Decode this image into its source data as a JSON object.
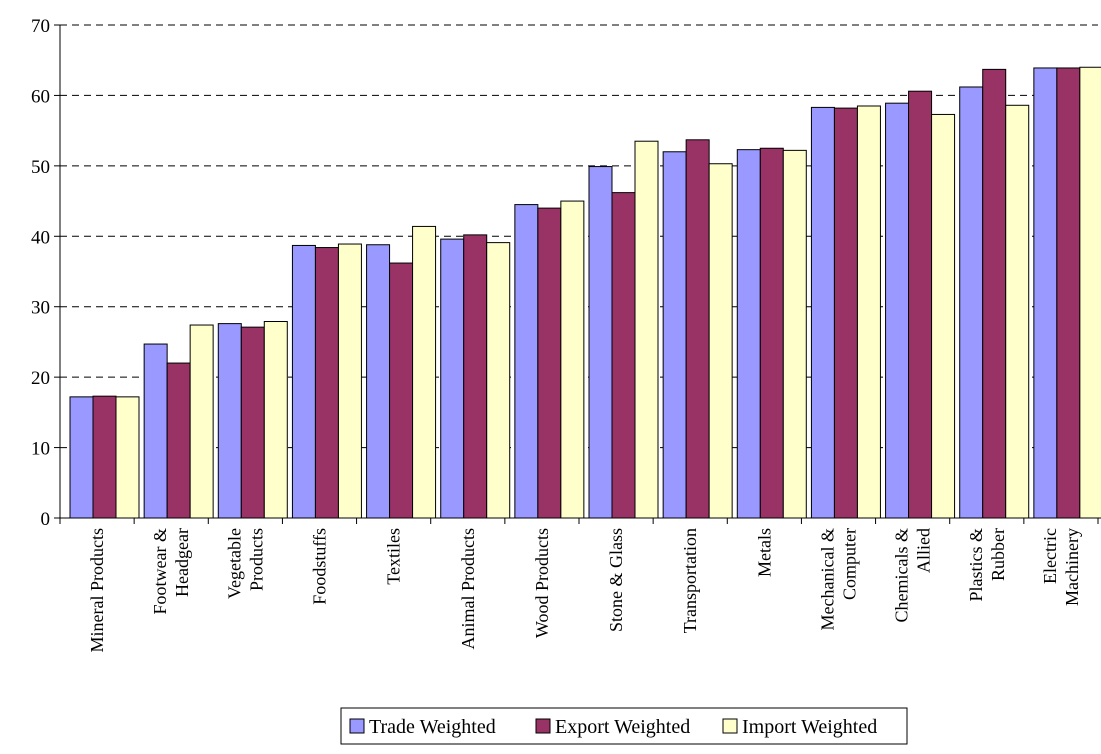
{
  "chart_data": {
    "type": "bar",
    "title": "",
    "xlabel": "",
    "ylabel": "",
    "ylim": [
      0,
      70
    ],
    "yticks": [
      0,
      10,
      20,
      30,
      40,
      50,
      60,
      70
    ],
    "grid": "horizontal dashed",
    "legend_position": "bottom-center",
    "categories": [
      [
        "Mineral Products"
      ],
      [
        "Footwear &",
        "Headgear"
      ],
      [
        "Vegetable",
        "Products"
      ],
      [
        "Foodstuffs"
      ],
      [
        "Textiles"
      ],
      [
        "Animal Products"
      ],
      [
        "Wood Products"
      ],
      [
        "Stone & Glass"
      ],
      [
        "Transportation"
      ],
      [
        "Metals"
      ],
      [
        "Mechanical &",
        "Computer"
      ],
      [
        "Chemicals &",
        "Allied"
      ],
      [
        "Plastics &",
        "Rubber"
      ],
      [
        "Electric",
        "Machinery"
      ]
    ],
    "series": [
      {
        "name": "Trade Weighted",
        "color": "#9999ff",
        "values": [
          17.2,
          24.7,
          27.6,
          38.7,
          38.8,
          39.6,
          44.5,
          49.9,
          52.0,
          52.3,
          58.3,
          58.9,
          61.2,
          63.9
        ]
      },
      {
        "name": "Export Weighted",
        "color": "#993366",
        "values": [
          17.3,
          22.0,
          27.1,
          38.4,
          36.2,
          40.2,
          44.0,
          46.2,
          53.7,
          52.5,
          58.2,
          60.6,
          63.7,
          63.9
        ]
      },
      {
        "name": "Import Weighted",
        "color": "#ffffcc",
        "values": [
          17.2,
          27.4,
          27.9,
          38.9,
          41.4,
          39.1,
          45.0,
          53.5,
          50.3,
          52.2,
          58.5,
          57.3,
          58.6,
          64.0
        ]
      }
    ]
  }
}
